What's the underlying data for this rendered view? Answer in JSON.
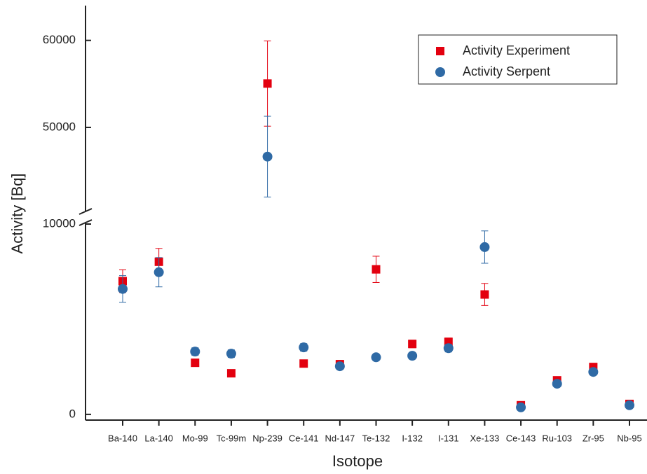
{
  "chart_data": {
    "type": "scatter",
    "x_label": "Isotope",
    "y_label": "Activity [Bq]",
    "categories": [
      "Ba-140",
      "La-140",
      "Mo-99",
      "Tc-99m",
      "Np-239",
      "Ce-141",
      "Nd-147",
      "Te-132",
      "I-132",
      "I-131",
      "Xe-133",
      "Ce-143",
      "Ru-103",
      "Zr-95",
      "Nb-95"
    ],
    "series": [
      {
        "name": "Activity Experiment",
        "color": "#e3000f",
        "marker": "square",
        "values": [
          7000,
          8020,
          2710,
          2160,
          55040,
          2670,
          2640,
          7620,
          3700,
          3810,
          6300,
          480,
          1790,
          2490,
          550
        ],
        "errors": [
          600,
          700,
          150,
          100,
          4900,
          150,
          100,
          690,
          200,
          200,
          580,
          50,
          80,
          80,
          50
        ]
      },
      {
        "name": "Activity Serpent",
        "color": "#2f6aa5",
        "marker": "circle",
        "values": [
          6590,
          7470,
          3300,
          3190,
          46640,
          3520,
          2530,
          3000,
          3080,
          3480,
          8790,
          370,
          1610,
          2230,
          480
        ],
        "errors": [
          700,
          770,
          200,
          200,
          4640,
          200,
          100,
          100,
          150,
          200,
          850,
          40,
          60,
          80,
          40
        ]
      }
    ],
    "ylim": [
      -300,
      64000
    ],
    "ybreak": [
      10000,
      40500
    ],
    "yticks": [
      0,
      10000,
      50000,
      60000
    ],
    "legend": "upper right"
  }
}
